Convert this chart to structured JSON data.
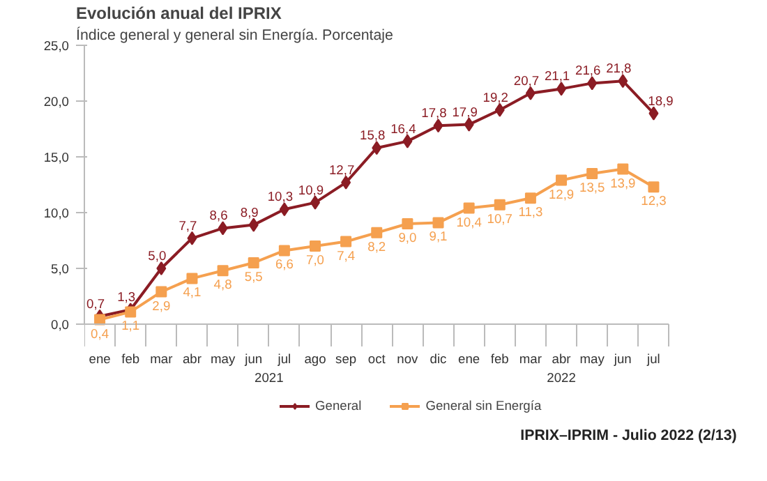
{
  "chart_data": {
    "type": "line",
    "title": "Evolución anual del IPRIX",
    "subtitle": "Índice general y general sin Energía. Porcentaje",
    "categories": [
      "ene",
      "feb",
      "mar",
      "abr",
      "may",
      "jun",
      "jul",
      "ago",
      "sep",
      "oct",
      "nov",
      "dic",
      "ene",
      "feb",
      "mar",
      "abr",
      "may",
      "jun",
      "jul"
    ],
    "series": [
      {
        "name": "General",
        "color": "#8b1c24",
        "marker": "diamond",
        "values": [
          0.7,
          1.3,
          5.0,
          7.7,
          8.6,
          8.9,
          10.3,
          10.9,
          12.7,
          15.8,
          16.4,
          17.8,
          17.9,
          19.2,
          20.7,
          21.1,
          21.6,
          21.8,
          18.9
        ],
        "value_labels": [
          "0,7",
          "1,3",
          "5,0",
          "7,7",
          "8,6",
          "8,9",
          "10,3",
          "10,9",
          "12,7",
          "15,8",
          "16,4",
          "17,8",
          "17,9",
          "19,2",
          "20,7",
          "21,1",
          "21,6",
          "21,8",
          "18,9"
        ]
      },
      {
        "name": "General sin Energía",
        "color": "#f5a04f",
        "marker": "square",
        "values": [
          0.4,
          1.1,
          2.9,
          4.1,
          4.8,
          5.5,
          6.6,
          7.0,
          7.4,
          8.2,
          9.0,
          9.1,
          10.4,
          10.7,
          11.3,
          12.9,
          13.5,
          13.9,
          12.3
        ],
        "value_labels": [
          "0,4",
          "1,1",
          "2,9",
          "4,1",
          "4,8",
          "5,5",
          "6,6",
          "7,0",
          "7,4",
          "8,2",
          "9,0",
          "9,1",
          "10,4",
          "10,7",
          "11,3",
          "12,9",
          "13,5",
          "13,9",
          "12,3"
        ]
      }
    ],
    "ylim": [
      0,
      25
    ],
    "yticks": [
      {
        "value": 0,
        "label": "0,0"
      },
      {
        "value": 5,
        "label": "5,0"
      },
      {
        "value": 10,
        "label": "10,0"
      },
      {
        "value": 15,
        "label": "15,0"
      },
      {
        "value": 20,
        "label": "20,0"
      },
      {
        "value": 25,
        "label": "25,0"
      }
    ],
    "annotations": [
      "2021",
      "2022",
      "IPRIX–IPRIM - Julio 2022 (2/13)"
    ],
    "grid": false,
    "legend": "bottom",
    "line_style": "solid"
  }
}
